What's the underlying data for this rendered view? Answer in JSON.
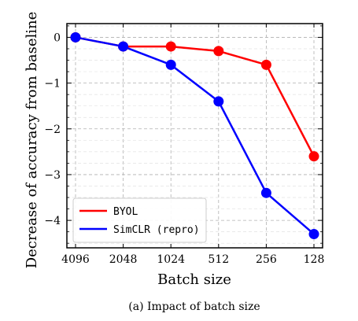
{
  "chart_data": {
    "type": "line",
    "categories": [
      "4096",
      "2048",
      "1024",
      "512",
      "256",
      "128"
    ],
    "series": [
      {
        "name": "BYOL",
        "color": "#ff0000",
        "values": [
          0,
          -0.2,
          -0.2,
          -0.3,
          -0.6,
          -2.6
        ]
      },
      {
        "name": "SimCLR (repro)",
        "color": "#0000ff",
        "values": [
          0,
          -0.2,
          -0.6,
          -1.4,
          -3.4,
          -4.3
        ]
      }
    ],
    "title": "",
    "xlabel": "Batch size",
    "ylabel": "Decrease of accuracy from baseline",
    "ylim": [
      -4.6,
      0.3
    ],
    "yticks": [
      0,
      -1,
      -2,
      -3,
      -4
    ],
    "ytick_labels": [
      "0",
      "−1",
      "−2",
      "−3",
      "−4"
    ],
    "grid": true,
    "legend": "bottom-left"
  },
  "caption": "(a) Impact of batch size"
}
